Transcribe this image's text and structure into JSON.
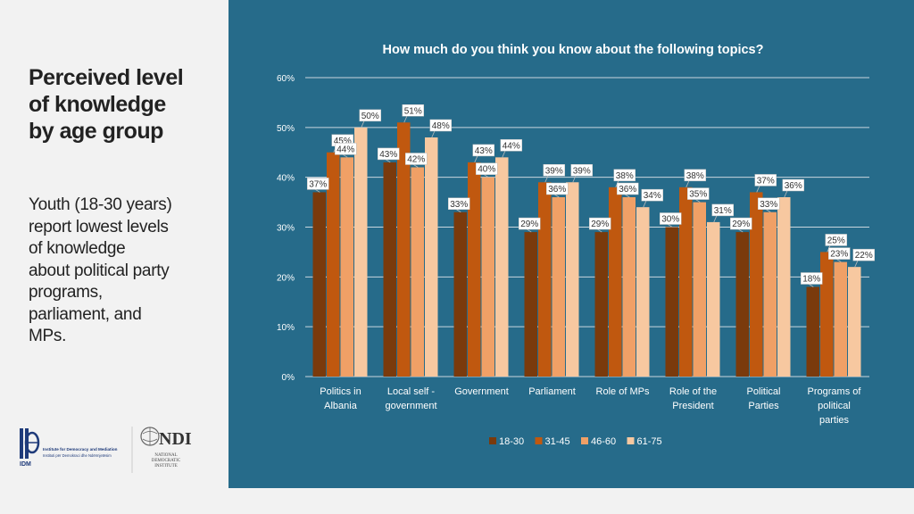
{
  "left": {
    "heading": [
      "Perceived level",
      "of knowledge",
      "by age group"
    ],
    "note": [
      "Youth (18-30 years)",
      "report lowest levels",
      "of knowledge",
      "about political party",
      "programs,",
      "parliament, and",
      "MPs."
    ]
  },
  "logos": {
    "idm_name": "Institute for Democracy and Mediation",
    "idm_subtitle": "Instituti për Demokraci dhe Ndërmjetësim",
    "idm_abbr": "IDM",
    "ndi_abbr": "NDI",
    "ndi_name": [
      "NATIONAL",
      "DEMOCRATIC",
      "INSTITUTE"
    ]
  },
  "colors": {
    "panel": "#266b8a",
    "series": [
      "#7a3a0c",
      "#c0580f",
      "#f0a066",
      "#f7c8a0"
    ],
    "grid": "#c9d6de",
    "text": "#ffffff"
  },
  "chart_data": {
    "type": "bar",
    "title": "How much do you think you know about the following topics?",
    "categories": [
      [
        "Politics in",
        "Albania"
      ],
      [
        "Local self -",
        "government"
      ],
      [
        "Government"
      ],
      [
        "Parliament"
      ],
      [
        "Role of MPs"
      ],
      [
        "Role of the",
        "President"
      ],
      [
        "Political",
        "Parties"
      ],
      [
        "Programs of",
        "political",
        "parties"
      ]
    ],
    "series": [
      {
        "name": "18-30",
        "values": [
          37,
          43,
          33,
          29,
          29,
          30,
          29,
          18
        ]
      },
      {
        "name": "31-45",
        "values": [
          45,
          51,
          43,
          39,
          38,
          38,
          37,
          25
        ]
      },
      {
        "name": "46-60",
        "values": [
          44,
          42,
          40,
          36,
          36,
          35,
          33,
          23
        ]
      },
      {
        "name": "61-75",
        "values": [
          50,
          48,
          44,
          39,
          34,
          31,
          36,
          22
        ]
      }
    ],
    "ylim": [
      0,
      60
    ],
    "yticks": [
      "0%",
      "10%",
      "20%",
      "30%",
      "40%",
      "50%",
      "60%"
    ],
    "grid": true,
    "legend_position": "bottom"
  }
}
